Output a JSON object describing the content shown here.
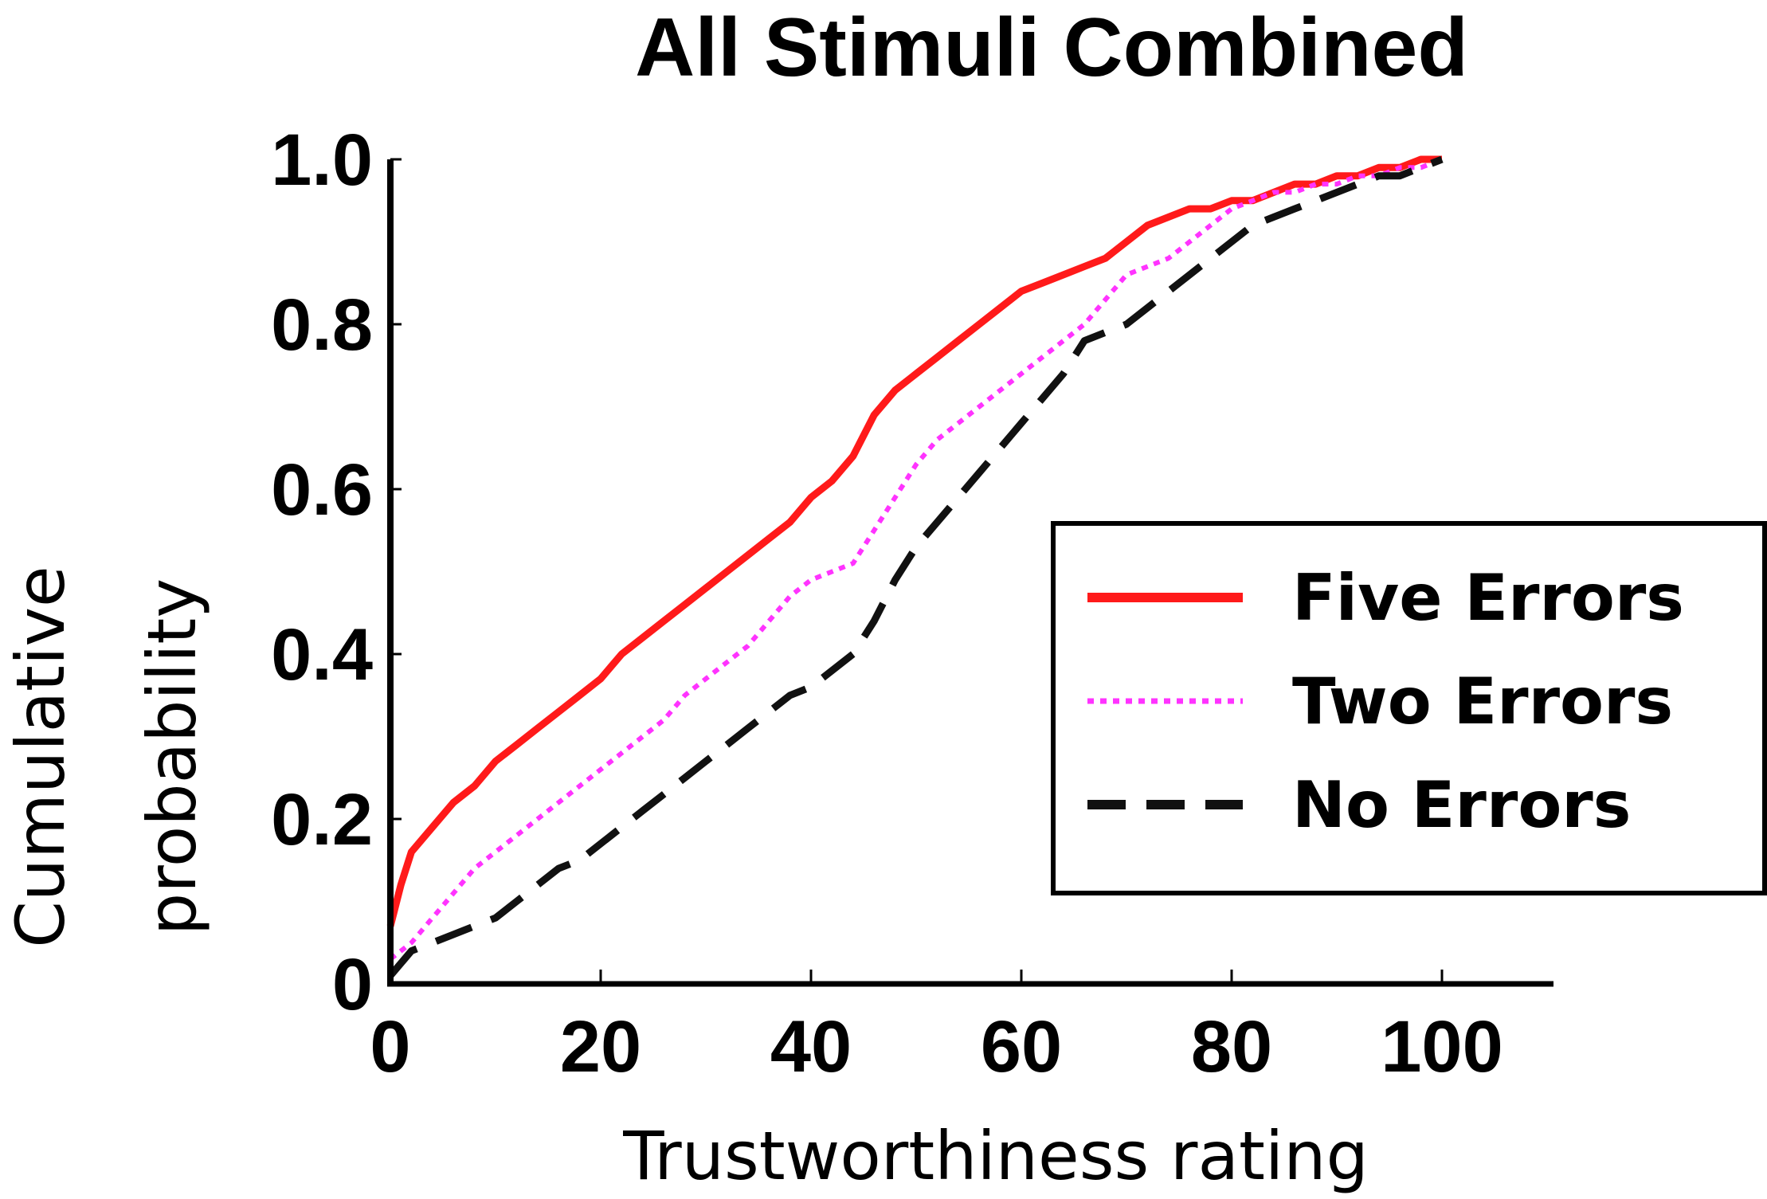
{
  "chart_data": {
    "type": "line",
    "title": "All Stimuli Combined",
    "xlabel": "Trustworthiness rating",
    "ylabel_line1": "Cumulative",
    "ylabel_line2": "probability",
    "xlim": [
      0,
      100
    ],
    "ylim": [
      0,
      1.0
    ],
    "xticks": [
      0,
      20,
      40,
      60,
      80,
      100
    ],
    "xtick_labels": [
      "0",
      "20",
      "40",
      "60",
      "80",
      "100"
    ],
    "yticks": [
      0,
      0.2,
      0.4,
      0.6,
      0.8,
      1.0
    ],
    "ytick_labels": [
      "0",
      "0.2",
      "0.4",
      "0.6",
      "0.8",
      "1.0"
    ],
    "legend_position": "bottom-right",
    "grid": false,
    "series": [
      {
        "name": "Five Errors",
        "color": "#ff1a1a",
        "style": "solid",
        "x": [
          0,
          1,
          2,
          4,
          6,
          8,
          10,
          12,
          14,
          16,
          18,
          20,
          22,
          24,
          26,
          28,
          30,
          32,
          34,
          36,
          38,
          40,
          42,
          44,
          46,
          48,
          50,
          52,
          54,
          56,
          58,
          60,
          62,
          64,
          66,
          68,
          70,
          72,
          74,
          76,
          78,
          80,
          82,
          84,
          86,
          88,
          90,
          92,
          94,
          96,
          98,
          100
        ],
        "y": [
          0.07,
          0.12,
          0.16,
          0.19,
          0.22,
          0.24,
          0.27,
          0.29,
          0.31,
          0.33,
          0.35,
          0.37,
          0.4,
          0.42,
          0.44,
          0.46,
          0.48,
          0.5,
          0.52,
          0.54,
          0.56,
          0.59,
          0.61,
          0.64,
          0.69,
          0.72,
          0.74,
          0.76,
          0.78,
          0.8,
          0.82,
          0.84,
          0.85,
          0.86,
          0.87,
          0.88,
          0.9,
          0.92,
          0.93,
          0.94,
          0.94,
          0.95,
          0.95,
          0.96,
          0.97,
          0.97,
          0.98,
          0.98,
          0.99,
          0.99,
          1.0,
          1.0
        ]
      },
      {
        "name": "Two Errors",
        "color": "#ff33ff",
        "style": "dotted",
        "x": [
          0,
          2,
          4,
          6,
          8,
          10,
          12,
          14,
          16,
          18,
          20,
          22,
          24,
          26,
          28,
          30,
          32,
          34,
          36,
          38,
          40,
          42,
          44,
          46,
          48,
          50,
          52,
          54,
          56,
          58,
          60,
          62,
          64,
          66,
          68,
          70,
          72,
          74,
          76,
          78,
          80,
          82,
          84,
          86,
          88,
          90,
          92,
          94,
          96,
          98,
          100
        ],
        "y": [
          0.03,
          0.05,
          0.08,
          0.11,
          0.14,
          0.16,
          0.18,
          0.2,
          0.22,
          0.24,
          0.26,
          0.28,
          0.3,
          0.32,
          0.35,
          0.37,
          0.39,
          0.41,
          0.44,
          0.47,
          0.49,
          0.5,
          0.51,
          0.55,
          0.59,
          0.63,
          0.66,
          0.68,
          0.7,
          0.72,
          0.74,
          0.76,
          0.78,
          0.8,
          0.83,
          0.86,
          0.87,
          0.88,
          0.9,
          0.92,
          0.94,
          0.95,
          0.96,
          0.96,
          0.97,
          0.97,
          0.98,
          0.98,
          0.99,
          0.99,
          1.0
        ]
      },
      {
        "name": "No Errors",
        "color": "#111111",
        "style": "dashed",
        "x": [
          0,
          2,
          4,
          6,
          8,
          10,
          12,
          14,
          16,
          18,
          20,
          22,
          24,
          26,
          28,
          30,
          32,
          34,
          36,
          38,
          40,
          42,
          44,
          46,
          48,
          50,
          52,
          54,
          56,
          58,
          60,
          62,
          64,
          66,
          68,
          70,
          72,
          74,
          76,
          78,
          80,
          82,
          84,
          86,
          88,
          90,
          92,
          94,
          96,
          98,
          100
        ],
        "y": [
          0.01,
          0.04,
          0.05,
          0.06,
          0.07,
          0.08,
          0.1,
          0.12,
          0.14,
          0.15,
          0.17,
          0.19,
          0.21,
          0.23,
          0.25,
          0.27,
          0.29,
          0.31,
          0.33,
          0.35,
          0.36,
          0.38,
          0.4,
          0.44,
          0.49,
          0.53,
          0.56,
          0.59,
          0.62,
          0.65,
          0.68,
          0.71,
          0.74,
          0.78,
          0.79,
          0.8,
          0.82,
          0.84,
          0.86,
          0.88,
          0.9,
          0.92,
          0.93,
          0.94,
          0.95,
          0.96,
          0.97,
          0.98,
          0.98,
          0.99,
          1.0
        ]
      }
    ]
  }
}
